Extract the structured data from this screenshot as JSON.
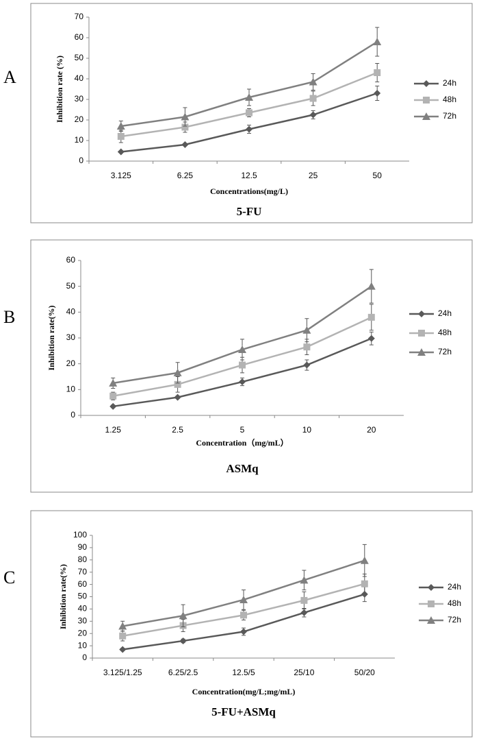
{
  "chart_data": [
    {
      "type": "line",
      "label": "A",
      "title": "5-FU",
      "x_label": "Concentrations(mg/L)",
      "y_label": "Inhibition rate (%)",
      "categories": [
        "3.125",
        "6.25",
        "12.5",
        "25",
        "50"
      ],
      "ylim": [
        0,
        70
      ],
      "yticks": [
        0,
        10,
        20,
        30,
        40,
        50,
        60,
        70
      ],
      "grid": false,
      "series": [
        {
          "name": "24h",
          "color": "#595959",
          "marker": "diamond",
          "values": [
            4.5,
            8,
            15.5,
            22.5,
            33
          ],
          "errors": [
            0.5,
            0.5,
            2,
            2,
            3.5
          ]
        },
        {
          "name": "48h",
          "color": "#b3b3b3",
          "marker": "square",
          "values": [
            12,
            16.5,
            23.5,
            30.5,
            43
          ],
          "errors": [
            3,
            2.5,
            2,
            3.5,
            4.5
          ]
        },
        {
          "name": "72h",
          "color": "#808080",
          "marker": "triangle",
          "values": [
            17,
            21.5,
            31,
            38.5,
            58
          ],
          "errors": [
            2.5,
            4.5,
            4,
            4,
            7
          ]
        }
      ]
    },
    {
      "type": "line",
      "label": "B",
      "title": "ASMq",
      "x_label": "Concentration（mg/mL）",
      "y_label": "Inhibition rate(%)",
      "categories": [
        "1.25",
        "2.5",
        "5",
        "10",
        "20"
      ],
      "ylim": [
        0,
        60
      ],
      "yticks": [
        0,
        10,
        20,
        30,
        40,
        50,
        60
      ],
      "grid": false,
      "series": [
        {
          "name": "24h",
          "color": "#595959",
          "marker": "diamond",
          "values": [
            3.5,
            7,
            13,
            19.5,
            29.8
          ],
          "errors": [
            0.5,
            0.5,
            1.5,
            2,
            2.5
          ]
        },
        {
          "name": "48h",
          "color": "#b3b3b3",
          "marker": "square",
          "values": [
            7.5,
            12,
            19.5,
            26.5,
            38
          ],
          "errors": [
            1.5,
            3,
            3,
            3,
            5
          ]
        },
        {
          "name": "72h",
          "color": "#808080",
          "marker": "triangle",
          "values": [
            12.5,
            16.5,
            25.5,
            33,
            50
          ],
          "errors": [
            2,
            4,
            4,
            4.5,
            6.5
          ]
        }
      ]
    },
    {
      "type": "line",
      "label": "C",
      "title": "5-FU+ASMq",
      "x_label": "Concentration(mg/L;mg/mL)",
      "y_label": "Inhibition rate(%)",
      "categories": [
        "3.125/1.25",
        "6.25/2.5",
        "12.5/5",
        "25/10",
        "50/20"
      ],
      "ylim": [
        0,
        100
      ],
      "yticks": [
        0,
        10,
        20,
        30,
        40,
        50,
        60,
        70,
        80,
        90,
        100
      ],
      "grid": false,
      "series": [
        {
          "name": "24h",
          "color": "#595959",
          "marker": "diamond",
          "values": [
            7,
            14,
            21.5,
            37,
            52
          ],
          "errors": [
            1,
            1.5,
            3,
            3.5,
            6
          ]
        },
        {
          "name": "48h",
          "color": "#b3b3b3",
          "marker": "square",
          "values": [
            18,
            26.5,
            35,
            47,
            60.5
          ],
          "errors": [
            4,
            5,
            4,
            7,
            8
          ]
        },
        {
          "name": "72h",
          "color": "#808080",
          "marker": "triangle",
          "values": [
            26,
            34.5,
            47.5,
            63.5,
            79.5
          ],
          "errors": [
            4,
            9,
            8,
            8,
            13
          ]
        }
      ]
    }
  ]
}
